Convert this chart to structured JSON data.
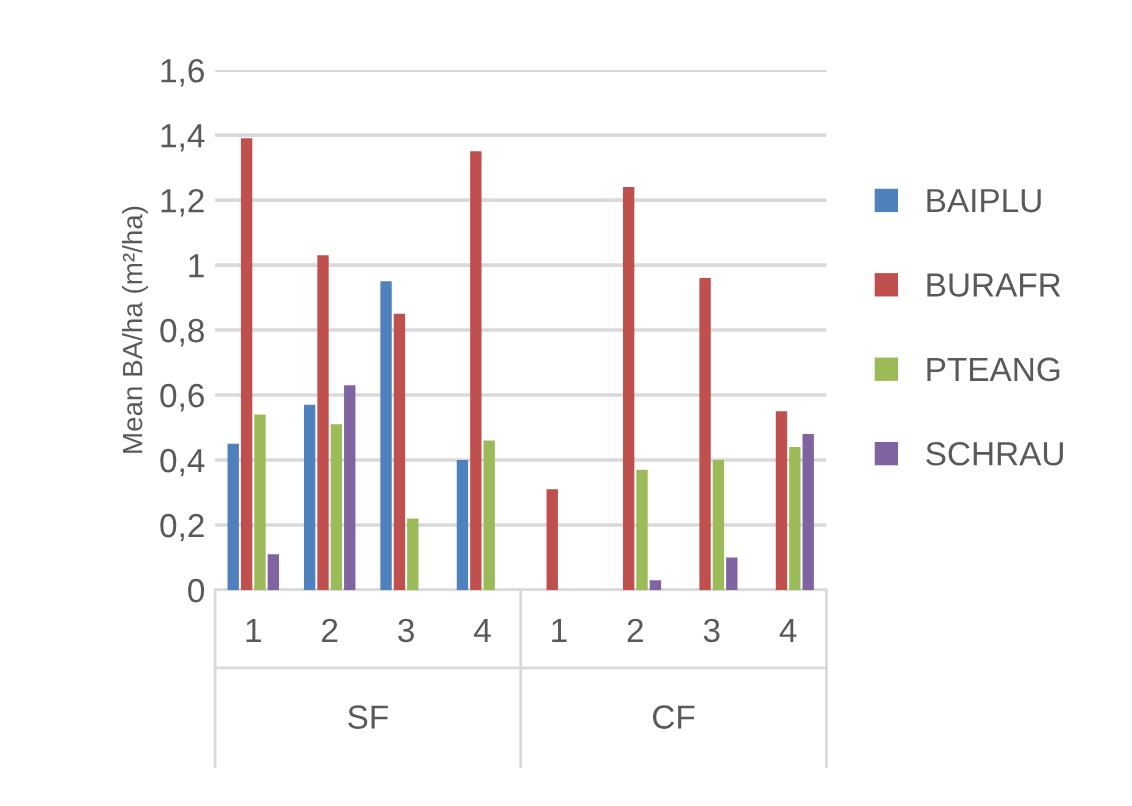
{
  "chart_data": {
    "type": "bar",
    "ylabel": "Mean BA/ha (m²/ha)",
    "categories": [
      "1",
      "2",
      "3",
      "4",
      "1",
      "2",
      "3",
      "4"
    ],
    "annotations": [
      "SF",
      "CF"
    ],
    "series": [
      {
        "name": "BAIPLU",
        "color": "#4f81bd",
        "values": [
          0.45,
          0.57,
          0.95,
          0.4,
          null,
          null,
          null,
          null
        ]
      },
      {
        "name": "BURAFR",
        "color": "#c0504d",
        "values": [
          1.39,
          1.03,
          0.85,
          1.35,
          0.31,
          1.24,
          0.96,
          0.55
        ]
      },
      {
        "name": "PTEANG",
        "color": "#9bbb59",
        "values": [
          0.54,
          0.51,
          0.22,
          0.46,
          null,
          0.37,
          0.4,
          0.44
        ]
      },
      {
        "name": "SCHRAU",
        "color": "#8064a2",
        "values": [
          0.11,
          0.63,
          null,
          null,
          null,
          0.03,
          0.1,
          0.48
        ]
      }
    ],
    "ylim": [
      0,
      1.6
    ],
    "yticks": [
      0,
      {
        "value": 0.2,
        "label": "0,2"
      },
      {
        "value": 0.4,
        "label": "0,4"
      },
      {
        "value": 0.6,
        "label": "0,6"
      },
      {
        "value": 0.8,
        "label": "0,8"
      },
      1,
      {
        "value": 1.2,
        "label": "1,2"
      },
      {
        "value": 1.4,
        "label": "1,4"
      },
      {
        "value": 1.6,
        "label": "1,6"
      }
    ],
    "grid": "y",
    "legend": "right"
  }
}
